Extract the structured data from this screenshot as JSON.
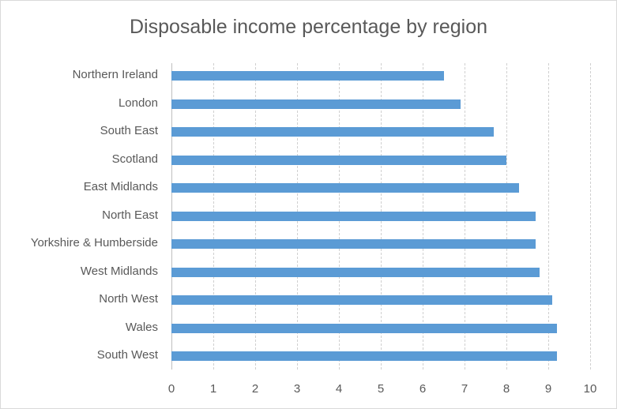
{
  "chart_data": {
    "type": "bar",
    "orientation": "horizontal",
    "title": "Disposable income percentage by region",
    "xlabel": "",
    "ylabel": "",
    "xlim": [
      0,
      10
    ],
    "x_ticks": [
      "0",
      "1",
      "2",
      "3",
      "4",
      "5",
      "6",
      "7",
      "8",
      "9",
      "10"
    ],
    "grid": true,
    "legend": null,
    "color": "#5b9bd5",
    "categories": [
      "Northern Ireland",
      "London",
      "South East",
      "Scotland",
      "East Midlands",
      "North East",
      "Yorkshire & Humberside",
      "West Midlands",
      "North West",
      "Wales",
      "South West"
    ],
    "values": [
      6.5,
      6.9,
      7.7,
      8.0,
      8.3,
      8.7,
      8.7,
      8.8,
      9.1,
      9.2,
      9.2
    ]
  }
}
